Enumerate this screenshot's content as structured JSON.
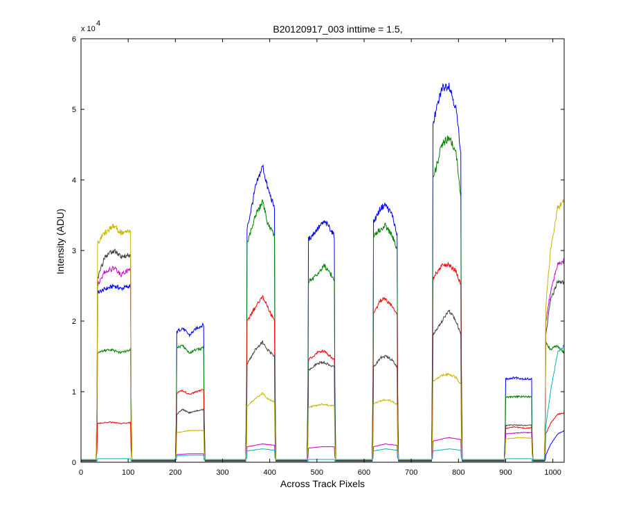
{
  "chart_data": {
    "type": "line",
    "title": "B20120917_003 inttime = 1.5,",
    "xlabel": "Across Track Pixels",
    "ylabel": "Intensity (ADU)",
    "xlim": [
      0,
      1024
    ],
    "ylim": [
      0,
      60000
    ],
    "y_multiplier": "x 10",
    "y_multiplier_exponent": "4",
    "xticks": [
      0,
      100,
      200,
      300,
      400,
      500,
      600,
      700,
      800,
      900,
      1000
    ],
    "xtick_labels": [
      "0",
      "100",
      "200",
      "300",
      "400",
      "500",
      "600",
      "700",
      "800",
      "900",
      "1000"
    ],
    "yticks": [
      0,
      10000,
      20000,
      30000,
      40000,
      50000,
      60000
    ],
    "ytick_labels": [
      "0",
      "1",
      "2",
      "3",
      "4",
      "5",
      "6"
    ],
    "grid": false,
    "segments": [
      {
        "x0": 35,
        "x1": 105
      },
      {
        "x0": 203,
        "x1": 260
      },
      {
        "x0": 352,
        "x1": 410
      },
      {
        "x0": 482,
        "x1": 537
      },
      {
        "x0": 620,
        "x1": 670
      },
      {
        "x0": 746,
        "x1": 805
      },
      {
        "x0": 900,
        "x1": 955
      },
      {
        "x0": 985,
        "x1": 1024
      }
    ],
    "series": [
      {
        "color": "#0000ff",
        "plateaus": [
          [
            [
              35,
              24000
            ],
            [
              50,
              24500
            ],
            [
              70,
              25000
            ],
            [
              85,
              24600
            ],
            [
              105,
              25000
            ]
          ],
          [
            [
              203,
              18500
            ],
            [
              215,
              19000
            ],
            [
              230,
              18000
            ],
            [
              245,
              19000
            ],
            [
              260,
              19500
            ]
          ],
          [
            [
              352,
              33000
            ],
            [
              370,
              39000
            ],
            [
              385,
              42000
            ],
            [
              395,
              39000
            ],
            [
              410,
              36000
            ]
          ],
          [
            [
              482,
              31500
            ],
            [
              500,
              33000
            ],
            [
              515,
              34000
            ],
            [
              525,
              33500
            ],
            [
              537,
              32000
            ]
          ],
          [
            [
              620,
              34000
            ],
            [
              635,
              36000
            ],
            [
              645,
              36500
            ],
            [
              660,
              35000
            ],
            [
              670,
              32000
            ]
          ],
          [
            [
              746,
              48000
            ],
            [
              765,
              53000
            ],
            [
              780,
              53500
            ],
            [
              795,
              50000
            ],
            [
              805,
              44000
            ]
          ],
          [
            [
              900,
              11800
            ],
            [
              920,
              12000
            ],
            [
              940,
              11800
            ],
            [
              955,
              11800
            ]
          ],
          [
            [
              985,
              1000
            ],
            [
              995,
              2500
            ],
            [
              1010,
              4000
            ],
            [
              1024,
              4500
            ]
          ]
        ]
      },
      {
        "color": "#008000",
        "plateaus": [
          [
            [
              35,
              15500
            ],
            [
              60,
              16000
            ],
            [
              85,
              15500
            ],
            [
              105,
              16000
            ]
          ],
          [
            [
              203,
              16200
            ],
            [
              215,
              16500
            ],
            [
              230,
              15500
            ],
            [
              245,
              16000
            ],
            [
              260,
              16200
            ]
          ],
          [
            [
              352,
              31000
            ],
            [
              370,
              35000
            ],
            [
              385,
              37000
            ],
            [
              395,
              34000
            ],
            [
              410,
              32000
            ]
          ],
          [
            [
              482,
              25500
            ],
            [
              500,
              26500
            ],
            [
              515,
              28000
            ],
            [
              525,
              27000
            ],
            [
              537,
              26000
            ]
          ],
          [
            [
              620,
              32000
            ],
            [
              635,
              33000
            ],
            [
              645,
              33500
            ],
            [
              660,
              32000
            ],
            [
              670,
              30000
            ]
          ],
          [
            [
              746,
              40000
            ],
            [
              765,
              45000
            ],
            [
              780,
              46000
            ],
            [
              795,
              44000
            ],
            [
              805,
              37000
            ]
          ],
          [
            [
              900,
              9200
            ],
            [
              920,
              9300
            ],
            [
              940,
              9300
            ],
            [
              955,
              9300
            ]
          ],
          [
            [
              985,
              17000
            ],
            [
              995,
              16000
            ],
            [
              1010,
              16500
            ],
            [
              1024,
              15500
            ]
          ]
        ]
      },
      {
        "color": "#ff0000",
        "plateaus": [
          [
            [
              35,
              5500
            ],
            [
              60,
              5700
            ],
            [
              85,
              5500
            ],
            [
              105,
              5600
            ]
          ],
          [
            [
              203,
              9800
            ],
            [
              215,
              10200
            ],
            [
              230,
              9600
            ],
            [
              245,
              10000
            ],
            [
              260,
              10300
            ]
          ],
          [
            [
              352,
              20000
            ],
            [
              370,
              22000
            ],
            [
              385,
              23500
            ],
            [
              395,
              22000
            ],
            [
              410,
              20000
            ]
          ],
          [
            [
              482,
              14500
            ],
            [
              500,
              15500
            ],
            [
              515,
              15800
            ],
            [
              525,
              15200
            ],
            [
              537,
              14500
            ]
          ],
          [
            [
              620,
              21000
            ],
            [
              635,
              23000
            ],
            [
              645,
              23200
            ],
            [
              660,
              22000
            ],
            [
              670,
              21000
            ]
          ],
          [
            [
              746,
              26000
            ],
            [
              765,
              28000
            ],
            [
              780,
              28000
            ],
            [
              795,
              27000
            ],
            [
              805,
              25000
            ]
          ],
          [
            [
              900,
              4800
            ],
            [
              920,
              5000
            ],
            [
              940,
              4800
            ],
            [
              955,
              4900
            ]
          ],
          [
            [
              985,
              4000
            ],
            [
              995,
              5500
            ],
            [
              1010,
              6800
            ],
            [
              1024,
              7000
            ]
          ]
        ]
      },
      {
        "color": "#404040",
        "plateaus": [
          [
            [
              35,
              26000
            ],
            [
              50,
              29000
            ],
            [
              70,
              30000
            ],
            [
              85,
              29000
            ],
            [
              105,
              29500
            ]
          ],
          [
            [
              203,
              6800
            ],
            [
              215,
              7500
            ],
            [
              230,
              7000
            ],
            [
              245,
              7300
            ],
            [
              260,
              7500
            ]
          ],
          [
            [
              352,
              14000
            ],
            [
              370,
              16000
            ],
            [
              385,
              17000
            ],
            [
              395,
              16000
            ],
            [
              410,
              15000
            ]
          ],
          [
            [
              482,
              13000
            ],
            [
              500,
              14000
            ],
            [
              515,
              14200
            ],
            [
              525,
              13800
            ],
            [
              537,
              13500
            ]
          ],
          [
            [
              620,
              13500
            ],
            [
              635,
              14800
            ],
            [
              645,
              15000
            ],
            [
              660,
              14500
            ],
            [
              670,
              13500
            ]
          ],
          [
            [
              746,
              18000
            ],
            [
              765,
              20000
            ],
            [
              780,
              21500
            ],
            [
              795,
              20000
            ],
            [
              805,
              18000
            ]
          ],
          [
            [
              900,
              5200
            ],
            [
              920,
              5300
            ],
            [
              940,
              5200
            ],
            [
              955,
              5300
            ]
          ],
          [
            [
              985,
              18000
            ],
            [
              995,
              23000
            ],
            [
              1010,
              25500
            ],
            [
              1024,
              25500
            ]
          ]
        ]
      },
      {
        "color": "#cc00cc",
        "plateaus": [
          [
            [
              35,
              25000
            ],
            [
              50,
              27000
            ],
            [
              70,
              27500
            ],
            [
              85,
              26500
            ],
            [
              105,
              27500
            ]
          ],
          [
            [
              203,
              1100
            ],
            [
              230,
              1200
            ],
            [
              260,
              1200
            ]
          ],
          [
            [
              352,
              2200
            ],
            [
              385,
              2600
            ],
            [
              410,
              2400
            ]
          ],
          [
            [
              482,
              2000
            ],
            [
              510,
              2200
            ],
            [
              537,
              2200
            ]
          ],
          [
            [
              620,
              2200
            ],
            [
              645,
              2600
            ],
            [
              670,
              2400
            ]
          ],
          [
            [
              746,
              3000
            ],
            [
              780,
              3500
            ],
            [
              805,
              3200
            ]
          ],
          [
            [
              900,
              4000
            ],
            [
              930,
              4200
            ],
            [
              955,
              4200
            ]
          ],
          [
            [
              985,
              20000
            ],
            [
              995,
              24000
            ],
            [
              1010,
              28000
            ],
            [
              1024,
              28500
            ]
          ]
        ]
      },
      {
        "color": "#c8b400",
        "plateaus": [
          [
            [
              35,
              31000
            ],
            [
              50,
              32500
            ],
            [
              70,
              33500
            ],
            [
              85,
              32500
            ],
            [
              105,
              33000
            ]
          ],
          [
            [
              203,
              4200
            ],
            [
              230,
              4500
            ],
            [
              260,
              4500
            ]
          ],
          [
            [
              352,
              8000
            ],
            [
              370,
              9000
            ],
            [
              385,
              9800
            ],
            [
              395,
              9000
            ],
            [
              410,
              8500
            ]
          ],
          [
            [
              482,
              7800
            ],
            [
              510,
              8200
            ],
            [
              537,
              8000
            ]
          ],
          [
            [
              620,
              8300
            ],
            [
              640,
              8800
            ],
            [
              655,
              8800
            ],
            [
              670,
              8200
            ]
          ],
          [
            [
              746,
              11500
            ],
            [
              765,
              12300
            ],
            [
              780,
              12500
            ],
            [
              795,
              12000
            ],
            [
              805,
              11000
            ]
          ],
          [
            [
              900,
              3300
            ],
            [
              930,
              3500
            ],
            [
              955,
              3400
            ]
          ],
          [
            [
              985,
              22000
            ],
            [
              995,
              30000
            ],
            [
              1010,
              36000
            ],
            [
              1024,
              37000
            ]
          ]
        ]
      },
      {
        "color": "#00b4b4",
        "plateaus": [
          [
            [
              35,
              500
            ],
            [
              105,
              500
            ]
          ],
          [
            [
              203,
              900
            ],
            [
              230,
              1000
            ],
            [
              260,
              1000
            ]
          ],
          [
            [
              352,
              1600
            ],
            [
              385,
              1900
            ],
            [
              410,
              1700
            ]
          ],
          [
            [
              482,
              400
            ],
            [
              537,
              400
            ]
          ],
          [
            [
              620,
              1600
            ],
            [
              645,
              1900
            ],
            [
              670,
              1700
            ]
          ],
          [
            [
              746,
              1600
            ],
            [
              780,
              1900
            ],
            [
              805,
              1700
            ]
          ],
          [
            [
              900,
              500
            ],
            [
              955,
              500
            ]
          ],
          [
            [
              985,
              5000
            ],
            [
              995,
              10000
            ],
            [
              1010,
              15500
            ],
            [
              1024,
              16500
            ]
          ]
        ]
      }
    ]
  }
}
